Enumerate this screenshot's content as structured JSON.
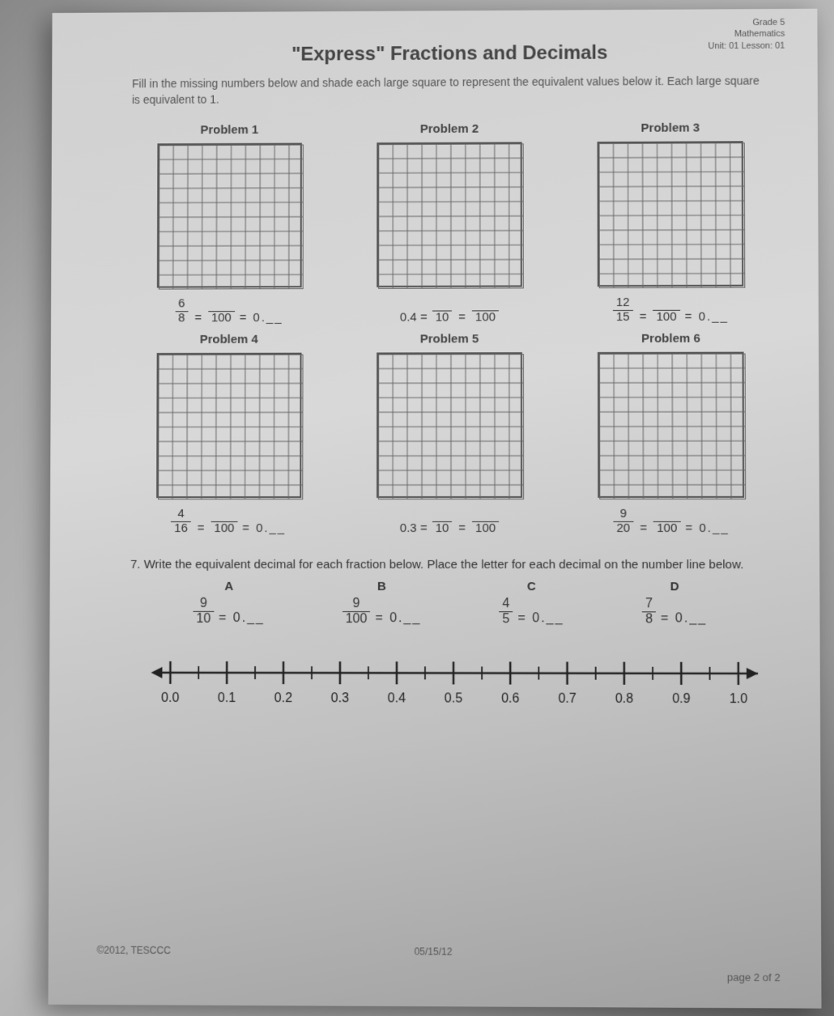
{
  "header": {
    "line1": "Grade 5",
    "line2": "Mathematics",
    "line3": "Unit: 01 Lesson: 01"
  },
  "title": "\"Express\" Fractions and Decimals",
  "instructions": "Fill in the missing numbers below and shade each large square to represent the equivalent values below it. Each large square is equivalent to 1.",
  "problems": [
    {
      "title": "Problem 1",
      "frac1_num": "6",
      "frac1_den": "8",
      "mid": "=",
      "frac2_num": "",
      "frac2_den": "100",
      "tail": "= 0.__"
    },
    {
      "title": "Problem 2",
      "lead": "0.4 =",
      "frac1_num": "",
      "frac1_den": "10",
      "mid": "=",
      "frac2_num": "",
      "frac2_den": "100",
      "tail": ""
    },
    {
      "title": "Problem 3",
      "frac1_num": "12",
      "frac1_den": "15",
      "mid": "=",
      "frac2_num": "",
      "frac2_den": "100",
      "tail": "= 0.__"
    },
    {
      "title": "Problem 4",
      "frac1_num": "4",
      "frac1_den": "16",
      "mid": "=",
      "frac2_num": "",
      "frac2_den": "100",
      "tail": "= 0.__"
    },
    {
      "title": "Problem 5",
      "lead": "0.3 =",
      "frac1_num": "",
      "frac1_den": "10",
      "mid": "=",
      "frac2_num": "",
      "frac2_den": "100",
      "tail": ""
    },
    {
      "title": "Problem 6",
      "frac1_num": "9",
      "frac1_den": "20",
      "mid": "=",
      "frac2_num": "",
      "frac2_den": "100",
      "tail": "= 0.__"
    }
  ],
  "q7": {
    "number": "7.",
    "text": "Write the equivalent decimal for each fraction below. Place the letter for each decimal on the number line below.",
    "items": [
      {
        "letter": "A",
        "num": "9",
        "den": "10",
        "tail": "= 0.__"
      },
      {
        "letter": "B",
        "num": "9",
        "den": "100",
        "tail": "= 0.__"
      },
      {
        "letter": "C",
        "num": "4",
        "den": "5",
        "tail": "= 0.__"
      },
      {
        "letter": "D",
        "num": "7",
        "den": "8",
        "tail": "= 0.__"
      }
    ],
    "numberline": {
      "min": 0.0,
      "max": 1.0,
      "step": 0.1,
      "labels": [
        "0.0",
        "0.1",
        "0.2",
        "0.3",
        "0.4",
        "0.5",
        "0.6",
        "0.7",
        "0.8",
        "0.9",
        "1.0"
      ]
    }
  },
  "grid": {
    "rows": 10,
    "cols": 10,
    "line_color": "#666",
    "line_width": 1
  },
  "footer": {
    "left": "©2012, TESCCC",
    "center": "05/15/12",
    "right": "page 2 of 2"
  }
}
